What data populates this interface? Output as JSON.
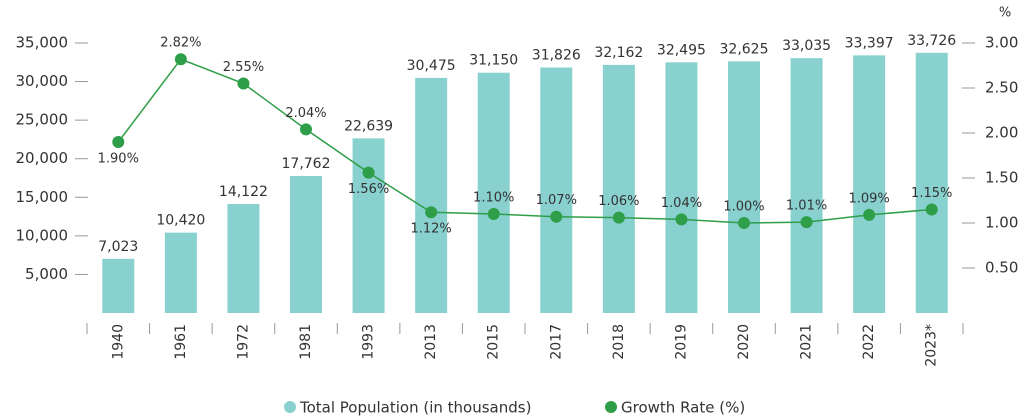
{
  "chart_data": {
    "type": "bar-line",
    "categories": [
      "1940",
      "1961",
      "1972",
      "1981",
      "1993",
      "2013",
      "2015",
      "2017",
      "2018",
      "2019",
      "2020",
      "2021",
      "2022",
      "2023*"
    ],
    "series": [
      {
        "name": "Total Population (in thousands)",
        "type": "bar",
        "color": "#88d1cf",
        "values": [
          7023,
          10420,
          14122,
          17762,
          22639,
          30475,
          31150,
          31826,
          32162,
          32495,
          32625,
          33035,
          33397,
          33726
        ],
        "value_labels": [
          "7,023",
          "10,420",
          "14,122",
          "17,762",
          "22,639",
          "30,475",
          "31,150",
          "31,826",
          "32,162",
          "32,495",
          "32,625",
          "33,035",
          "33,397",
          "33,726"
        ]
      },
      {
        "name": "Growth Rate (%)",
        "type": "line",
        "axis": "y2",
        "color": "#2e9e48",
        "values": [
          1.9,
          2.82,
          2.55,
          2.04,
          1.56,
          1.12,
          1.1,
          1.07,
          1.06,
          1.04,
          1.0,
          1.01,
          1.09,
          1.15
        ],
        "value_labels": [
          "1.90%",
          "2.82%",
          "2.55%",
          "2.04%",
          "1.56%",
          "1.12%",
          "1.10%",
          "1.07%",
          "1.06%",
          "1.04%",
          "1.00%",
          "1.01%",
          "1.09%",
          "1.15%"
        ]
      }
    ],
    "ylim": [
      0,
      35000
    ],
    "yticks": [
      {
        "value": 5000,
        "label": "5,000"
      },
      {
        "value": 10000,
        "label": "10,000"
      },
      {
        "value": 15000,
        "label": "15,000"
      },
      {
        "value": 20000,
        "label": "20,000"
      },
      {
        "value": 25000,
        "label": "25,000"
      },
      {
        "value": 30000,
        "label": "30,000"
      },
      {
        "value": 35000,
        "label": "35,000"
      }
    ],
    "y2label": "%",
    "y2lim": [
      0,
      3
    ],
    "y2ticks": [
      {
        "value": 0.5,
        "label": "0.50"
      },
      {
        "value": 1,
        "label": "1.00"
      },
      {
        "value": 1.5,
        "label": "1.50"
      },
      {
        "value": 2,
        "label": "2.00"
      },
      {
        "value": 2.5,
        "label": "2.50"
      },
      {
        "value": 3,
        "label": "3.00"
      }
    ],
    "legend": "bottom"
  }
}
